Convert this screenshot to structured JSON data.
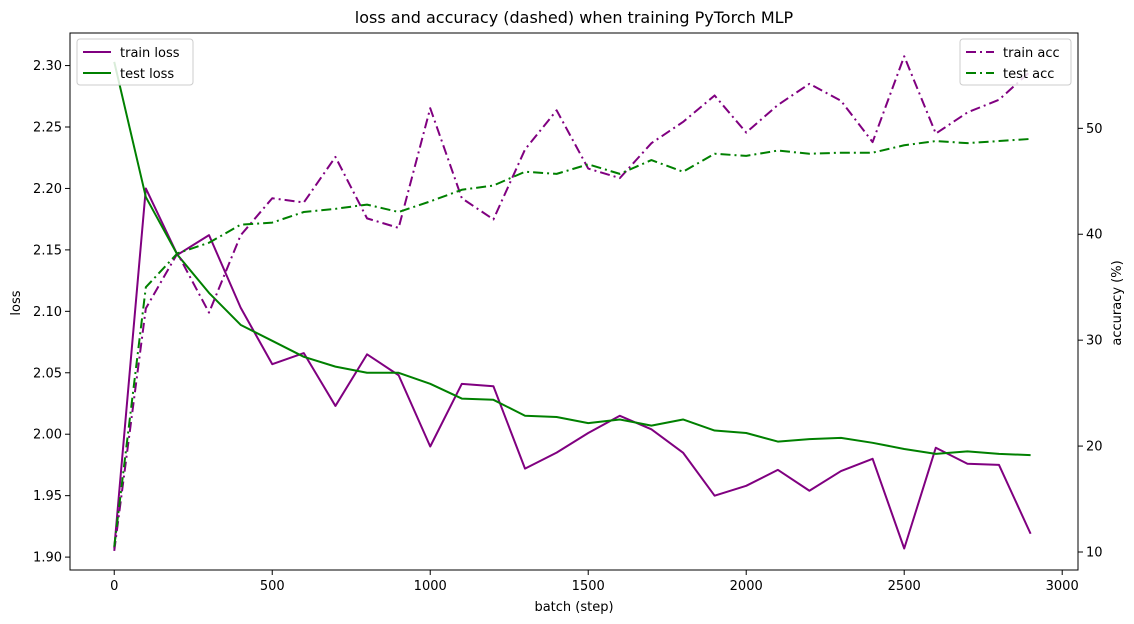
{
  "chart_data": {
    "type": "line",
    "title": "loss and accuracy (dashed) when training PyTorch MLP",
    "xlabel": "batch (step)",
    "ylabel_left": "loss",
    "ylabel_right": "accuracy (%)",
    "xlim": [
      -140,
      3050
    ],
    "ylim_left": [
      1.8895,
      2.3265
    ],
    "ylim_right": [
      8.3,
      59.0
    ],
    "xticks": [
      0,
      500,
      1000,
      1500,
      2000,
      2500,
      3000
    ],
    "yticks_left": [
      1.9,
      1.95,
      2.0,
      2.05,
      2.1,
      2.15,
      2.2,
      2.25,
      2.3
    ],
    "yticks_left_labels": [
      "1.90",
      "1.95",
      "2.00",
      "2.05",
      "2.10",
      "2.15",
      "2.20",
      "2.25",
      "2.30"
    ],
    "yticks_right": [
      10,
      20,
      30,
      40,
      50
    ],
    "grid": false,
    "legend_left_placement": "top-left",
    "legend_right_placement": "top-right",
    "x": [
      0,
      100,
      200,
      300,
      400,
      500,
      600,
      700,
      800,
      900,
      1000,
      1100,
      1200,
      1300,
      1400,
      1500,
      1600,
      1700,
      1800,
      1900,
      2000,
      2100,
      2200,
      2300,
      2400,
      2500,
      2600,
      2700,
      2800,
      2900
    ],
    "series": [
      {
        "name": "train loss",
        "axis": "left",
        "style": "solid",
        "color": "#800080",
        "values": [
          1.907,
          2.2,
          2.146,
          2.162,
          2.103,
          2.057,
          2.066,
          2.023,
          2.065,
          2.048,
          1.99,
          2.041,
          2.039,
          1.972,
          1.985,
          2.001,
          2.015,
          2.004,
          1.985,
          1.95,
          1.958,
          1.971,
          1.954,
          1.97,
          1.98,
          1.907,
          1.989,
          1.976,
          1.975,
          1.919
        ]
      },
      {
        "name": "test loss",
        "axis": "left",
        "style": "solid",
        "color": "#008000",
        "values": [
          2.303,
          2.193,
          2.146,
          2.115,
          2.089,
          2.076,
          2.063,
          2.055,
          2.05,
          2.05,
          2.041,
          2.029,
          2.028,
          2.015,
          2.014,
          2.009,
          2.012,
          2.007,
          2.012,
          2.003,
          2.001,
          1.994,
          1.996,
          1.997,
          1.993,
          1.988,
          1.984,
          1.986,
          1.984,
          1.983
        ]
      },
      {
        "name": "train acc",
        "axis": "right",
        "style": "dashdot",
        "color": "#800080",
        "values": [
          10.1,
          33.0,
          38.2,
          32.6,
          39.9,
          43.4,
          43.0,
          47.3,
          41.5,
          40.6,
          51.9,
          43.4,
          41.4,
          48.0,
          51.7,
          46.2,
          45.3,
          48.6,
          50.6,
          53.1,
          49.6,
          52.2,
          54.2,
          52.6,
          48.7,
          56.8,
          49.5,
          51.5,
          52.7,
          55.4
        ]
      },
      {
        "name": "test acc",
        "axis": "right",
        "style": "dashdot",
        "color": "#008000",
        "values": [
          10.5,
          35.0,
          38.2,
          39.2,
          40.9,
          41.1,
          42.1,
          42.4,
          42.8,
          42.1,
          43.1,
          44.2,
          44.6,
          45.9,
          45.7,
          46.6,
          45.7,
          47.0,
          45.9,
          47.6,
          47.4,
          47.9,
          47.6,
          47.7,
          47.7,
          48.4,
          48.8,
          48.6,
          48.8,
          49.0
        ]
      }
    ]
  }
}
